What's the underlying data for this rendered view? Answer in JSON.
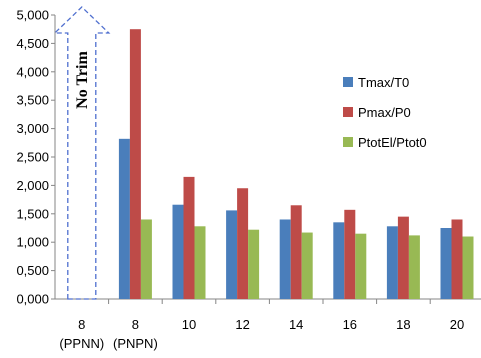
{
  "chart_data": {
    "type": "bar",
    "categories": [
      "8\n(PPNN)",
      "8\n(PNPN)",
      "10",
      "12",
      "14",
      "16",
      "18",
      "20"
    ],
    "series": [
      {
        "name": "Tmax/T0",
        "color": "#4a7ebb",
        "values": [
          null,
          2.82,
          1.66,
          1.56,
          1.4,
          1.35,
          1.28,
          1.25
        ]
      },
      {
        "name": "Pmax/P0",
        "color": "#be4b48",
        "values": [
          null,
          4.75,
          2.15,
          1.95,
          1.65,
          1.57,
          1.45,
          1.4
        ]
      },
      {
        "name": "PtotEl/Ptot0",
        "color": "#98b954",
        "values": [
          null,
          1.4,
          1.28,
          1.22,
          1.17,
          1.15,
          1.12,
          1.1
        ]
      }
    ],
    "y_ticks": [
      "0,000",
      "0,500",
      "1,000",
      "1,500",
      "2,000",
      "2,500",
      "3,000",
      "3,500",
      "4,000",
      "4,500",
      "5,000"
    ],
    "ylim": [
      0,
      5
    ],
    "grid": false,
    "legend_position": "right",
    "annotation": {
      "text": "No Trim",
      "category": "8\n(PPNN)",
      "style": "dashed up arrow"
    },
    "annotation_color": "#4f6fcf"
  }
}
